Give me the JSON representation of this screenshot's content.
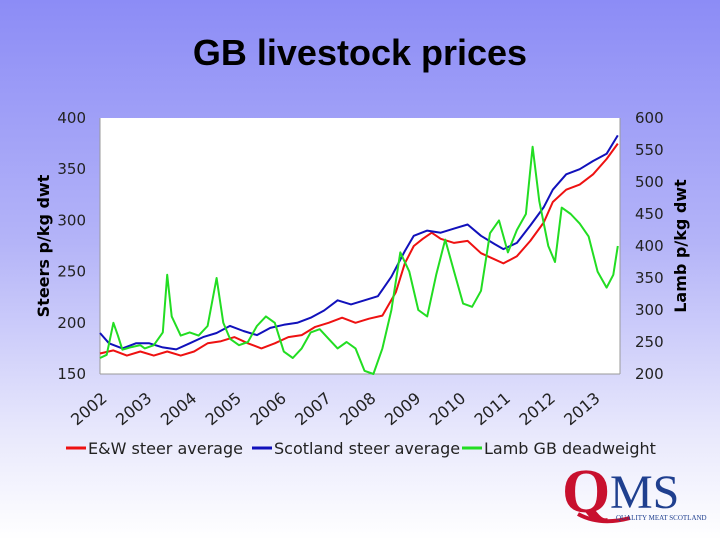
{
  "title": "GB livestock prices",
  "chart_data": {
    "type": "line",
    "ylabel": "Steers p/kg dwt",
    "y2label": "Lamb p/kg dwt",
    "ylim": [
      150,
      400
    ],
    "y2lim": [
      200,
      600
    ],
    "yticks": [
      "150",
      "200",
      "250",
      "300",
      "350",
      "400"
    ],
    "y2ticks": [
      "200",
      "250",
      "300",
      "350",
      "400",
      "450",
      "500",
      "550",
      "600"
    ],
    "xlim": [
      2002,
      2013.6
    ],
    "xticks": [
      "2002",
      "2003",
      "2004",
      "2005",
      "2006",
      "2007",
      "2008",
      "2009",
      "2010",
      "2011",
      "2012",
      "2013"
    ],
    "legend_position": "bottom",
    "grid": false,
    "series": [
      {
        "name": "E&W steer average",
        "axis": "left",
        "color": "#ee1111",
        "points": [
          [
            2002.0,
            170
          ],
          [
            2002.3,
            173
          ],
          [
            2002.6,
            168
          ],
          [
            2002.9,
            172
          ],
          [
            2003.2,
            168
          ],
          [
            2003.5,
            172
          ],
          [
            2003.8,
            168
          ],
          [
            2004.1,
            172
          ],
          [
            2004.4,
            180
          ],
          [
            2004.7,
            182
          ],
          [
            2005.0,
            186
          ],
          [
            2005.3,
            180
          ],
          [
            2005.6,
            175
          ],
          [
            2005.9,
            180
          ],
          [
            2006.2,
            186
          ],
          [
            2006.5,
            188
          ],
          [
            2006.8,
            196
          ],
          [
            2007.1,
            200
          ],
          [
            2007.4,
            205
          ],
          [
            2007.7,
            200
          ],
          [
            2008.0,
            204
          ],
          [
            2008.3,
            207
          ],
          [
            2008.6,
            230
          ],
          [
            2008.8,
            258
          ],
          [
            2009.0,
            275
          ],
          [
            2009.2,
            282
          ],
          [
            2009.4,
            288
          ],
          [
            2009.6,
            282
          ],
          [
            2009.9,
            278
          ],
          [
            2010.2,
            280
          ],
          [
            2010.5,
            268
          ],
          [
            2010.8,
            262
          ],
          [
            2011.0,
            258
          ],
          [
            2011.3,
            265
          ],
          [
            2011.6,
            280
          ],
          [
            2011.9,
            298
          ],
          [
            2012.1,
            318
          ],
          [
            2012.4,
            330
          ],
          [
            2012.7,
            335
          ],
          [
            2013.0,
            345
          ],
          [
            2013.3,
            360
          ],
          [
            2013.55,
            375
          ]
        ]
      },
      {
        "name": "Scotland steer average",
        "axis": "left",
        "color": "#1111bb",
        "points": [
          [
            2002.0,
            190
          ],
          [
            2002.2,
            180
          ],
          [
            2002.5,
            175
          ],
          [
            2002.8,
            180
          ],
          [
            2003.1,
            180
          ],
          [
            2003.4,
            176
          ],
          [
            2003.7,
            174
          ],
          [
            2004.0,
            180
          ],
          [
            2004.3,
            186
          ],
          [
            2004.6,
            190
          ],
          [
            2004.9,
            197
          ],
          [
            2005.2,
            192
          ],
          [
            2005.5,
            188
          ],
          [
            2005.8,
            195
          ],
          [
            2006.1,
            198
          ],
          [
            2006.4,
            200
          ],
          [
            2006.7,
            205
          ],
          [
            2007.0,
            212
          ],
          [
            2007.3,
            222
          ],
          [
            2007.6,
            218
          ],
          [
            2007.9,
            222
          ],
          [
            2008.2,
            226
          ],
          [
            2008.5,
            245
          ],
          [
            2008.8,
            270
          ],
          [
            2009.0,
            285
          ],
          [
            2009.3,
            290
          ],
          [
            2009.6,
            288
          ],
          [
            2009.9,
            292
          ],
          [
            2010.2,
            296
          ],
          [
            2010.5,
            285
          ],
          [
            2010.8,
            277
          ],
          [
            2011.0,
            272
          ],
          [
            2011.3,
            278
          ],
          [
            2011.6,
            295
          ],
          [
            2011.9,
            313
          ],
          [
            2012.1,
            330
          ],
          [
            2012.4,
            345
          ],
          [
            2012.7,
            350
          ],
          [
            2013.0,
            358
          ],
          [
            2013.3,
            365
          ],
          [
            2013.55,
            383
          ]
        ]
      },
      {
        "name": "Lamb GB deadweight",
        "axis": "right",
        "color": "#22dd22",
        "points": [
          [
            2002.0,
            225
          ],
          [
            2002.15,
            230
          ],
          [
            2002.3,
            280
          ],
          [
            2002.4,
            260
          ],
          [
            2002.5,
            238
          ],
          [
            2002.7,
            242
          ],
          [
            2002.9,
            245
          ],
          [
            2003.0,
            240
          ],
          [
            2003.2,
            245
          ],
          [
            2003.4,
            265
          ],
          [
            2003.5,
            355
          ],
          [
            2003.6,
            290
          ],
          [
            2003.8,
            260
          ],
          [
            2004.0,
            265
          ],
          [
            2004.2,
            260
          ],
          [
            2004.4,
            275
          ],
          [
            2004.6,
            350
          ],
          [
            2004.75,
            280
          ],
          [
            2004.9,
            255
          ],
          [
            2005.1,
            245
          ],
          [
            2005.3,
            250
          ],
          [
            2005.5,
            275
          ],
          [
            2005.7,
            290
          ],
          [
            2005.9,
            280
          ],
          [
            2006.1,
            235
          ],
          [
            2006.3,
            225
          ],
          [
            2006.5,
            240
          ],
          [
            2006.7,
            265
          ],
          [
            2006.9,
            270
          ],
          [
            2007.1,
            255
          ],
          [
            2007.3,
            240
          ],
          [
            2007.5,
            250
          ],
          [
            2007.7,
            240
          ],
          [
            2007.9,
            205
          ],
          [
            2008.1,
            200
          ],
          [
            2008.3,
            240
          ],
          [
            2008.5,
            300
          ],
          [
            2008.7,
            390
          ],
          [
            2008.9,
            360
          ],
          [
            2009.1,
            300
          ],
          [
            2009.3,
            290
          ],
          [
            2009.5,
            355
          ],
          [
            2009.7,
            410
          ],
          [
            2009.9,
            360
          ],
          [
            2010.1,
            310
          ],
          [
            2010.3,
            305
          ],
          [
            2010.5,
            330
          ],
          [
            2010.7,
            420
          ],
          [
            2010.9,
            440
          ],
          [
            2011.1,
            390
          ],
          [
            2011.3,
            425
          ],
          [
            2011.5,
            450
          ],
          [
            2011.65,
            555
          ],
          [
            2011.8,
            470
          ],
          [
            2012.0,
            400
          ],
          [
            2012.15,
            375
          ],
          [
            2012.3,
            460
          ],
          [
            2012.5,
            450
          ],
          [
            2012.7,
            435
          ],
          [
            2012.9,
            415
          ],
          [
            2013.1,
            360
          ],
          [
            2013.3,
            335
          ],
          [
            2013.45,
            355
          ],
          [
            2013.55,
            400
          ]
        ]
      }
    ]
  },
  "logo": {
    "letters": "QMS",
    "tagline": "QUALITY MEAT SCOTLAND",
    "colors": {
      "red": "#c8102e",
      "blue": "#1f3f8f"
    }
  }
}
